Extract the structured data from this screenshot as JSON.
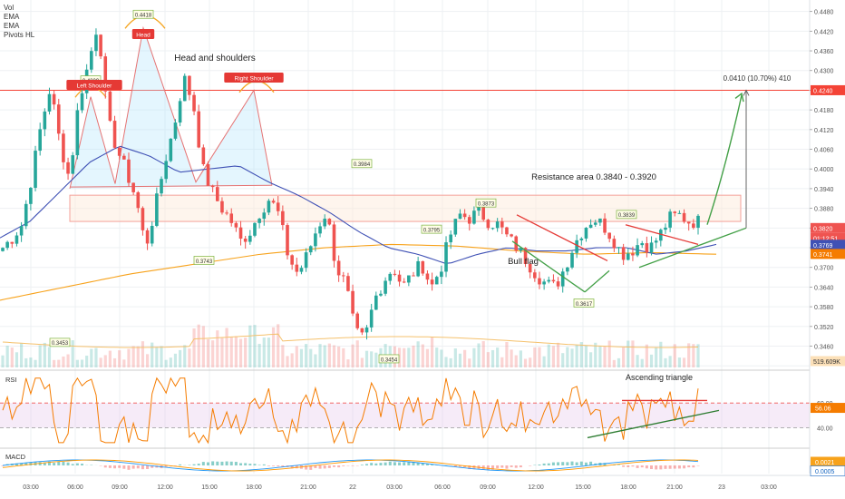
{
  "legend": {
    "vol": "Vol",
    "ema1": "EMA",
    "ema2": "EMA",
    "pivots": "Pivots HL"
  },
  "colors": {
    "up": "#26a69a",
    "down": "#ef5350",
    "ema_slow": "#f7a21b",
    "ema_fast": "#3f51b5",
    "rsi": "#f57c00",
    "resistance": "#f4a19a",
    "trend_green": "#43a047"
  },
  "chart_data": [
    {
      "type": "candlestick",
      "x_ticks": [
        "03:00",
        "06:00",
        "09:00",
        "12:00",
        "15:00",
        "18:00",
        "21:00",
        "22",
        "03:00",
        "06:00",
        "09:00",
        "12:00",
        "15:00",
        "18:00",
        "21:00",
        "23",
        "03:00"
      ],
      "y_ticks": [
        0.34,
        0.346,
        0.352,
        0.358,
        0.364,
        0.37,
        0.376,
        0.382,
        0.388,
        0.394,
        0.4,
        0.406,
        0.412,
        0.418,
        0.424,
        0.43,
        0.436,
        0.442,
        0.448
      ],
      "ylim": [
        0.3395,
        0.4515
      ],
      "anchor_prices": [
        0.376,
        0.379,
        0.383,
        0.397,
        0.413,
        0.425,
        0.408,
        0.397,
        0.421,
        0.432,
        0.445,
        0.415,
        0.406,
        0.399,
        0.391,
        0.376,
        0.388,
        0.402,
        0.413,
        0.428,
        0.42,
        0.4,
        0.393,
        0.388,
        0.384,
        0.378,
        0.381,
        0.387,
        0.391,
        0.386,
        0.373,
        0.368,
        0.374,
        0.382,
        0.387,
        0.37,
        0.365,
        0.35,
        0.348,
        0.36,
        0.366,
        0.37,
        0.364,
        0.368,
        0.371,
        0.364,
        0.37,
        0.38,
        0.386,
        0.385,
        0.387,
        0.384,
        0.383,
        0.379,
        0.376,
        0.372,
        0.368,
        0.365,
        0.364,
        0.37,
        0.377,
        0.382,
        0.385,
        0.383,
        0.379,
        0.374,
        0.375,
        0.378,
        0.376,
        0.38,
        0.385,
        0.386,
        0.384,
        0.384
      ],
      "ema_fast_anchors": [
        0.379,
        0.384,
        0.393,
        0.402,
        0.407,
        0.404,
        0.399,
        0.4,
        0.401,
        0.396,
        0.392,
        0.387,
        0.381,
        0.376,
        0.374,
        0.371,
        0.374,
        0.376,
        0.375,
        0.375,
        0.376,
        0.376,
        0.374,
        0.375,
        0.377
      ],
      "ema_slow_anchors": [
        0.36,
        0.364,
        0.368,
        0.371,
        0.374,
        0.376,
        0.377,
        0.3765,
        0.375,
        0.374,
        0.3745,
        0.374
      ],
      "pivot_labels": [
        "0.3453",
        "0.4209",
        "0.4418",
        "0.4222",
        "0.3743",
        "0.3984",
        "0.3454",
        "0.3795",
        "0.3873",
        "0.3617",
        "0.3839"
      ],
      "annotations": {
        "head": "Head",
        "left_shoulder": "Left Shoulder",
        "right_shoulder": "Right Shoulder",
        "pattern": "Head and shoulders",
        "resistance": "Resistance area 0.3840 - 0.3920",
        "bull_flag": "Bull flag",
        "measure": "0.0410 (10.70%) 410"
      },
      "price_badges": [
        {
          "text": "0.4240",
          "color": "#f44336",
          "fg": "#ffffff"
        },
        {
          "text": "0.3820",
          "color": "#ef5350",
          "fg": "#ffffff"
        },
        {
          "text": "01:12:51",
          "color": "#ef5350",
          "fg": "#ffffff"
        },
        {
          "text": "0.3769",
          "color": "#3f51b5",
          "fg": "#ffffff"
        },
        {
          "text": "0.3741",
          "color": "#f57c00",
          "fg": "#ffffff"
        },
        {
          "text": "519.609K",
          "color": "#fce0b8",
          "fg": "#333333"
        }
      ]
    },
    {
      "type": "line",
      "title": "RSI",
      "y_ticks": [
        40.0,
        60.0
      ],
      "ylim": [
        25,
        85
      ],
      "levels": [
        40,
        60
      ],
      "value_badge": "56.06",
      "annotation": "Ascending triangle"
    },
    {
      "type": "bar",
      "title": "MACD",
      "value_badges": [
        "0.0021",
        "0.0005"
      ]
    }
  ]
}
